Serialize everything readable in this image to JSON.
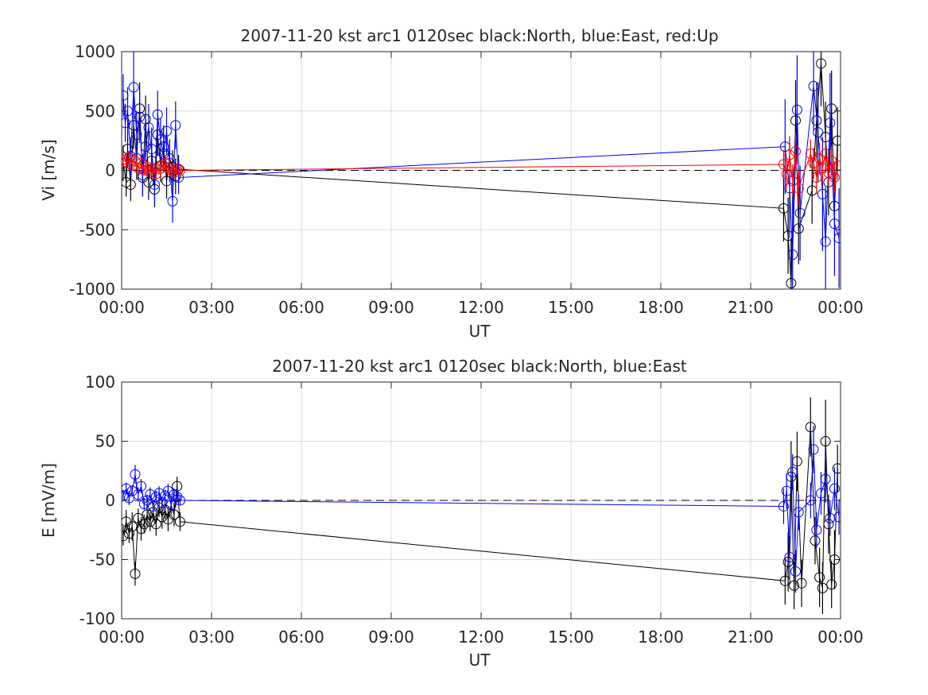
{
  "chart_data": [
    {
      "type": "scatter",
      "title": "2007-11-20 kst arc1 0120sec black:North, blue:East, red:Up",
      "xlabel": "UT",
      "ylabel": "Vi [m/s]",
      "xlim": [
        0,
        24
      ],
      "ylim": [
        -1000,
        1000
      ],
      "xticks": [
        0,
        3,
        6,
        9,
        12,
        15,
        18,
        21,
        24
      ],
      "xtick_labels": [
        "00:00",
        "03:00",
        "06:00",
        "09:00",
        "12:00",
        "15:00",
        "18:00",
        "21:00",
        "00:00"
      ],
      "yticks": [
        -1000,
        -500,
        0,
        500,
        1000
      ],
      "ytick_labels": [
        "-1000",
        "-500",
        "0",
        "500",
        "1000"
      ],
      "grid": true,
      "zero_line": true,
      "series": [
        {
          "name": "North",
          "color": "#000000",
          "x": [
            0.05,
            0.15,
            0.2,
            0.3,
            0.4,
            0.5,
            0.6,
            0.7,
            0.8,
            0.9,
            1.0,
            1.1,
            1.2,
            1.3,
            1.4,
            1.5,
            1.6,
            1.7,
            1.8,
            1.9,
            22.1,
            22.25,
            22.35,
            22.5,
            22.6,
            23.05,
            23.2,
            23.35,
            23.5,
            23.6,
            23.7,
            23.8,
            23.9
          ],
          "y": [
            60,
            -100,
            180,
            -120,
            380,
            100,
            520,
            -60,
            430,
            -100,
            80,
            -160,
            300,
            40,
            200,
            -90,
            100,
            30,
            -50,
            10,
            -320,
            -550,
            -950,
            420,
            -490,
            -170,
            420,
            900,
            280,
            -100,
            520,
            -300,
            250
          ],
          "err": [
            150,
            120,
            160,
            140,
            200,
            180,
            220,
            160,
            200,
            150,
            160,
            150,
            180,
            140,
            180,
            150,
            160,
            140,
            150,
            120,
            280,
            320,
            380,
            340,
            300,
            280,
            320,
            360,
            300,
            280,
            320,
            300,
            280
          ]
        },
        {
          "name": "East",
          "color": "#0000ff",
          "x": [
            0.05,
            0.12,
            0.2,
            0.3,
            0.4,
            0.5,
            0.6,
            0.7,
            0.8,
            0.9,
            1.0,
            1.1,
            1.2,
            1.3,
            1.4,
            1.5,
            1.6,
            1.7,
            1.8,
            1.9,
            22.15,
            22.3,
            22.4,
            22.55,
            22.65,
            23.1,
            23.25,
            23.4,
            23.5,
            23.65,
            23.8,
            23.95
          ],
          "y": [
            630,
            400,
            500,
            120,
            700,
            300,
            450,
            -40,
            200,
            360,
            180,
            -120,
            470,
            260,
            140,
            330,
            60,
            -260,
            380,
            -60,
            200,
            -150,
            -710,
            510,
            -360,
            710,
            320,
            -200,
            -600,
            400,
            -450,
            -570
          ],
          "err": [
            180,
            160,
            200,
            160,
            300,
            200,
            220,
            180,
            200,
            200,
            180,
            160,
            200,
            180,
            160,
            200,
            160,
            180,
            200,
            140,
            400,
            420,
            500,
            460,
            400,
            380,
            420,
            480,
            460,
            420,
            440,
            420
          ]
        },
        {
          "name": "Up",
          "color": "#ff0000",
          "x": [
            0.05,
            0.15,
            0.25,
            0.35,
            0.45,
            0.55,
            0.65,
            0.75,
            0.85,
            0.95,
            1.05,
            1.15,
            1.25,
            1.35,
            1.45,
            1.55,
            1.65,
            1.75,
            1.85,
            1.95,
            22.1,
            22.2,
            22.3,
            22.4,
            22.5,
            22.6,
            23.0,
            23.1,
            23.2,
            23.3,
            23.4,
            23.5,
            23.6,
            23.7,
            23.8,
            23.9
          ],
          "y": [
            90,
            70,
            110,
            40,
            80,
            20,
            60,
            0,
            30,
            -10,
            20,
            -30,
            10,
            40,
            60,
            20,
            0,
            -20,
            10,
            0,
            50,
            -30,
            130,
            -90,
            160,
            -150,
            140,
            60,
            -60,
            100,
            20,
            140,
            -20,
            80,
            -60,
            40
          ],
          "err": [
            50,
            40,
            50,
            40,
            50,
            40,
            50,
            40,
            50,
            40,
            40,
            40,
            40,
            40,
            40,
            40,
            40,
            40,
            40,
            30,
            120,
            140,
            160,
            140,
            160,
            150,
            120,
            130,
            140,
            130,
            120,
            140,
            130,
            120,
            130,
            120
          ]
        }
      ]
    },
    {
      "type": "scatter",
      "title": "2007-11-20 kst arc1 0120sec black:North, blue:East",
      "xlabel": "UT",
      "ylabel": "E [mV/m]",
      "xlim": [
        0,
        24
      ],
      "ylim": [
        -100,
        100
      ],
      "xticks": [
        0,
        3,
        6,
        9,
        12,
        15,
        18,
        21,
        24
      ],
      "xtick_labels": [
        "00:00",
        "03:00",
        "06:00",
        "09:00",
        "12:00",
        "15:00",
        "18:00",
        "21:00",
        "00:00"
      ],
      "yticks": [
        -100,
        -50,
        0,
        50,
        100
      ],
      "ytick_labels": [
        "-100",
        "-50",
        "0",
        "50",
        "100"
      ],
      "grid": true,
      "zero_line": true,
      "series": [
        {
          "name": "North",
          "color": "#000000",
          "x": [
            0.05,
            0.15,
            0.25,
            0.35,
            0.45,
            0.55,
            0.65,
            0.75,
            0.85,
            0.95,
            1.05,
            1.15,
            1.25,
            1.35,
            1.45,
            1.55,
            1.65,
            1.75,
            1.85,
            1.95,
            22.15,
            22.25,
            22.35,
            22.45,
            22.55,
            22.7,
            23.0,
            23.15,
            23.3,
            23.4,
            23.5,
            23.6,
            23.7,
            23.8,
            23.9
          ],
          "y": [
            -30,
            -18,
            -28,
            -22,
            -62,
            -15,
            -24,
            -20,
            -12,
            -18,
            -10,
            -20,
            -6,
            -14,
            -8,
            -16,
            -4,
            -12,
            12,
            -18,
            -68,
            -52,
            20,
            -72,
            33,
            -70,
            62,
            -34,
            -65,
            -74,
            50,
            -20,
            -71,
            -50,
            27
          ],
          "err": [
            8,
            10,
            8,
            12,
            10,
            8,
            10,
            8,
            10,
            8,
            8,
            10,
            8,
            10,
            8,
            10,
            8,
            10,
            8,
            8,
            20,
            25,
            30,
            20,
            25,
            20,
            25,
            20,
            25,
            22,
            35,
            25,
            20,
            25,
            20
          ]
        },
        {
          "name": "East",
          "color": "#0000ff",
          "x": [
            0.05,
            0.15,
            0.25,
            0.35,
            0.45,
            0.55,
            0.65,
            0.75,
            0.85,
            0.95,
            1.05,
            1.15,
            1.25,
            1.35,
            1.45,
            1.55,
            1.65,
            1.75,
            1.85,
            1.95,
            22.1,
            22.2,
            22.3,
            22.4,
            22.5,
            22.6,
            23.0,
            23.1,
            23.2,
            23.35,
            23.5,
            23.65,
            23.8,
            23.95
          ],
          "y": [
            4,
            10,
            2,
            8,
            22,
            5,
            12,
            -3,
            0,
            5,
            -5,
            3,
            6,
            -2,
            4,
            8,
            -4,
            5,
            3,
            0,
            -5,
            8,
            -48,
            24,
            -60,
            -10,
            0,
            43,
            -25,
            6,
            18,
            -15,
            10,
            -14
          ],
          "err": [
            5,
            5,
            6,
            5,
            8,
            6,
            6,
            5,
            5,
            6,
            5,
            5,
            6,
            5,
            5,
            6,
            5,
            5,
            5,
            4,
            15,
            15,
            18,
            15,
            18,
            15,
            15,
            20,
            15,
            18,
            20,
            15,
            18,
            15
          ]
        }
      ]
    }
  ]
}
